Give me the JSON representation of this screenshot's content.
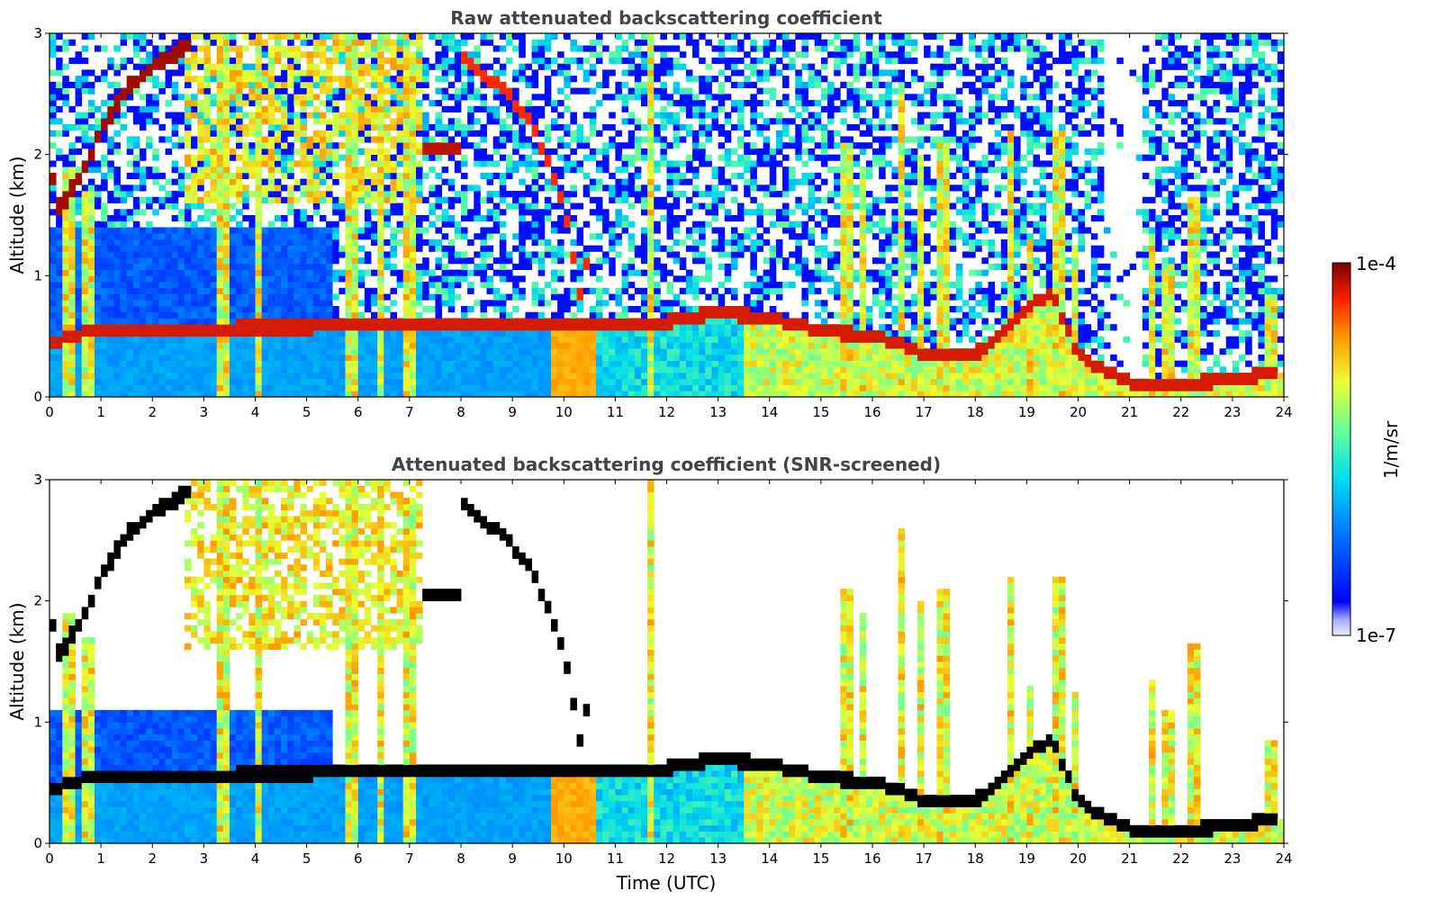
{
  "chart_data": [
    {
      "type": "heatmap",
      "title": "Raw attenuated backscattering coefficient",
      "xlabel": "",
      "ylabel": "Altitude (km)",
      "xlim": [
        0,
        24
      ],
      "ylim": [
        0,
        3
      ],
      "xticks": [
        "0",
        "1",
        "2",
        "3",
        "4",
        "5",
        "6",
        "7",
        "8",
        "9",
        "10",
        "11",
        "12",
        "13",
        "14",
        "15",
        "16",
        "17",
        "18",
        "19",
        "20",
        "21",
        "22",
        "23",
        "24"
      ],
      "yticks": [
        "0",
        "1",
        "2",
        "3"
      ],
      "screened": false
    },
    {
      "type": "heatmap",
      "title": "Attenuated backscattering coefficient (SNR-screened)",
      "xlabel": "Time (UTC)",
      "ylabel": "Altitude (km)",
      "xlim": [
        0,
        24
      ],
      "ylim": [
        0,
        3
      ],
      "xticks": [
        "0",
        "1",
        "2",
        "3",
        "4",
        "5",
        "6",
        "7",
        "8",
        "9",
        "10",
        "11",
        "12",
        "13",
        "14",
        "15",
        "16",
        "17",
        "18",
        "19",
        "20",
        "21",
        "22",
        "23",
        "24"
      ],
      "yticks": [
        "0",
        "1",
        "2",
        "3"
      ],
      "screened": true
    }
  ],
  "colorbar": {
    "label": "1/m/sr",
    "max_label": "1e-4",
    "min_label": "1e-7",
    "colormap": "jet",
    "scale": "log",
    "range": [
      1e-07,
      0.0001
    ]
  },
  "layers": {
    "boundary_layer_top_km": [
      [
        0.0,
        0.45
      ],
      [
        0.5,
        0.5
      ],
      [
        0.75,
        0.55
      ],
      [
        8.0,
        0.6
      ],
      [
        10.0,
        0.6
      ],
      [
        11.0,
        0.6
      ],
      [
        12.0,
        0.62
      ],
      [
        13.0,
        0.7
      ],
      [
        14.0,
        0.65
      ],
      [
        15.0,
        0.55
      ],
      [
        16.0,
        0.5
      ],
      [
        16.5,
        0.45
      ],
      [
        17.0,
        0.35
      ],
      [
        18.0,
        0.35
      ],
      [
        18.6,
        0.55
      ],
      [
        19.0,
        0.75
      ],
      [
        19.5,
        0.85
      ],
      [
        20.0,
        0.35
      ],
      [
        20.5,
        0.22
      ],
      [
        21.0,
        0.12
      ],
      [
        22.0,
        0.1
      ],
      [
        23.0,
        0.15
      ],
      [
        23.8,
        0.2
      ]
    ],
    "morning_cloud_km": [
      [
        0.0,
        1.9
      ],
      [
        0.2,
        1.55
      ],
      [
        0.7,
        1.9
      ],
      [
        1.0,
        2.2
      ],
      [
        1.5,
        2.55
      ],
      [
        2.0,
        2.72
      ],
      [
        2.5,
        2.85
      ],
      [
        2.8,
        2.95
      ]
    ],
    "mid_level_layer_km": [
      [
        7.2,
        2.05
      ],
      [
        8.0,
        2.05
      ]
    ],
    "descending_layer_km": [
      [
        8.0,
        2.8
      ],
      [
        8.8,
        2.55
      ],
      [
        9.4,
        2.25
      ],
      [
        10.0,
        1.6
      ],
      [
        10.3,
        0.85
      ],
      [
        10.5,
        1.2
      ]
    ],
    "plumes": [
      {
        "t": 0.35,
        "top": 1.9
      },
      {
        "t": 0.75,
        "top": 1.7
      },
      {
        "t": 3.35,
        "top": 3.0
      },
      {
        "t": 4.05,
        "top": 3.0
      },
      {
        "t": 5.9,
        "top": 3.0
      },
      {
        "t": 6.45,
        "top": 3.0
      },
      {
        "t": 7.0,
        "top": 2.8
      },
      {
        "t": 11.7,
        "top": 3.0
      },
      {
        "t": 15.5,
        "top": 2.1
      },
      {
        "t": 15.8,
        "top": 1.9
      },
      {
        "t": 16.55,
        "top": 2.6
      },
      {
        "t": 16.95,
        "top": 2.0
      },
      {
        "t": 17.35,
        "top": 2.1
      },
      {
        "t": 18.7,
        "top": 2.2
      },
      {
        "t": 19.05,
        "top": 1.3
      },
      {
        "t": 19.6,
        "top": 2.2
      },
      {
        "t": 19.95,
        "top": 1.25
      },
      {
        "t": 21.45,
        "top": 1.35
      },
      {
        "t": 21.75,
        "top": 1.1
      },
      {
        "t": 22.25,
        "top": 1.65
      },
      {
        "t": 23.75,
        "top": 0.85
      }
    ]
  }
}
